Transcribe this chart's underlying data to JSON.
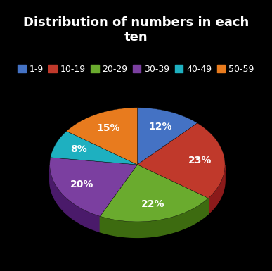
{
  "title": "Distribution of numbers in each\nten",
  "labels": [
    "1-9",
    "10-19",
    "20-29",
    "30-39",
    "40-49",
    "50-59"
  ],
  "values": [
    12,
    23,
    22,
    20,
    8,
    15
  ],
  "colors": [
    "#4472C4",
    "#C0392B",
    "#6AAB2E",
    "#7B3FA0",
    "#1EB0C0",
    "#E87B1E"
  ],
  "dark_colors": [
    "#2A4A8A",
    "#8B1A1A",
    "#3D6B10",
    "#4A1A6A",
    "#0A7080",
    "#9A4A0A"
  ],
  "background_color": "#000000",
  "text_color": "#FFFFFF",
  "title_fontsize": 13,
  "legend_fontsize": 9,
  "autopct_fontsize": 10,
  "startangle": 90,
  "pctdistance": 0.72
}
